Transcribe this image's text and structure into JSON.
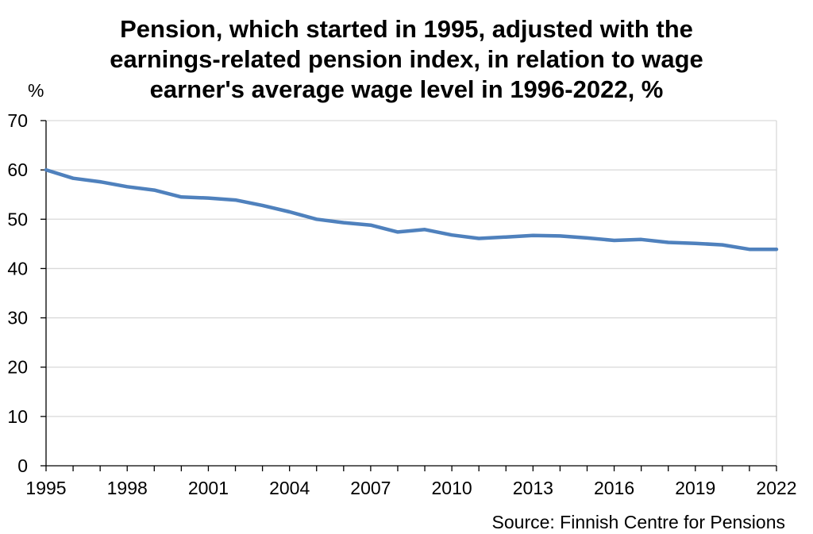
{
  "chart_data": {
    "type": "line",
    "title_lines": [
      "Pension, which started in 1995, adjusted with the",
      "earnings-related pension index, in relation to wage",
      "earner's average wage level in 1996-2022, %"
    ],
    "ylabel": "%",
    "xlabel": "",
    "ylim": [
      0,
      70
    ],
    "y_ticks": [
      0,
      10,
      20,
      30,
      40,
      50,
      60,
      70
    ],
    "xlim": [
      1995,
      2022
    ],
    "x_tick_labels": [
      1995,
      1998,
      2001,
      2004,
      2007,
      2010,
      2013,
      2016,
      2019,
      2022
    ],
    "grid": "horizontal",
    "series": [
      {
        "color": "#4F81BD",
        "x": [
          1995,
          1996,
          1997,
          1998,
          1999,
          2000,
          2001,
          2002,
          2003,
          2004,
          2005,
          2006,
          2007,
          2008,
          2009,
          2010,
          2011,
          2012,
          2013,
          2014,
          2015,
          2016,
          2017,
          2018,
          2019,
          2020,
          2021,
          2022
        ],
        "values": [
          60.0,
          58.3,
          57.6,
          56.6,
          55.9,
          54.5,
          54.3,
          53.9,
          52.8,
          51.5,
          50.0,
          49.3,
          48.8,
          47.4,
          47.9,
          46.8,
          46.1,
          46.4,
          46.7,
          46.6,
          46.2,
          45.7,
          45.9,
          45.3,
          45.1,
          44.8,
          43.9,
          43.9
        ]
      }
    ]
  },
  "footer": {
    "source": "Source: Finnish Centre for Pensions"
  }
}
